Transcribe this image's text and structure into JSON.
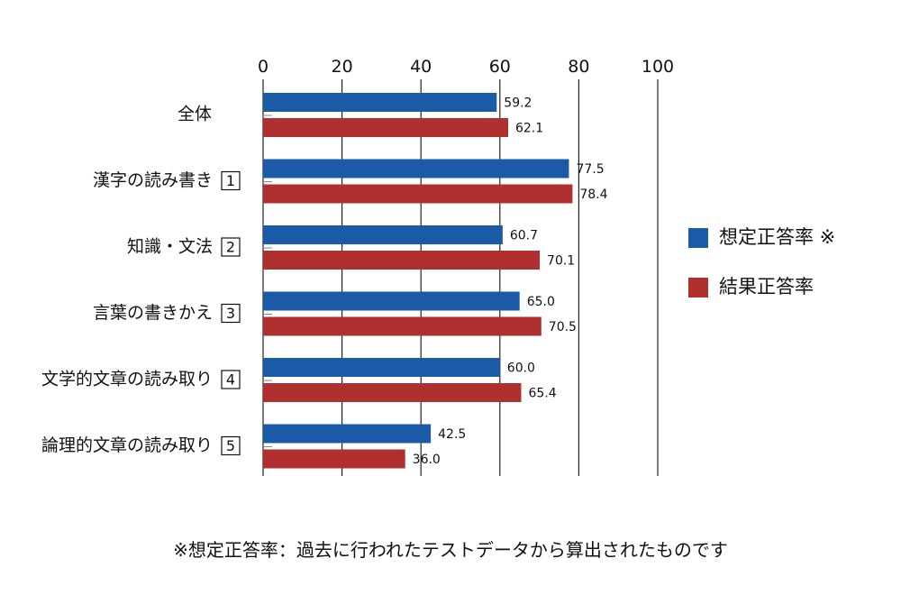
{
  "chart_data": {
    "type": "bar",
    "orientation": "horizontal",
    "categories": [
      "全体",
      "漢字の読み書き",
      "知識・文法",
      "言葉の書きかえ",
      "文学的文章の読み取り",
      "論理的文章の読み取り"
    ],
    "category_numbers": [
      "",
      "1",
      "2",
      "3",
      "4",
      "5"
    ],
    "series": [
      {
        "name": "想定正答率 ※",
        "color": "#1a5aa6",
        "values": [
          59.2,
          77.5,
          60.7,
          65.0,
          60.0,
          42.5
        ],
        "labels": [
          "59.2",
          "77.5",
          "60.7",
          "65.0",
          "60.0",
          "42.5"
        ]
      },
      {
        "name": "結果正答率",
        "color": "#b03030",
        "values": [
          62.1,
          78.4,
          70.1,
          70.5,
          65.4,
          36.0
        ],
        "labels": [
          "62.1",
          "78.4",
          "70.1",
          "70.5",
          "65.4",
          "36.0"
        ]
      }
    ],
    "xlim": [
      0,
      100
    ],
    "xticks": [
      0,
      20,
      40,
      60,
      80,
      100
    ],
    "xtick_labels": [
      "0",
      "20",
      "40",
      "60",
      "80",
      "100"
    ],
    "grid": true,
    "legend_position": "right",
    "footnote": "※想定正答率：過去に行われたテストデータから算出されたものです"
  }
}
